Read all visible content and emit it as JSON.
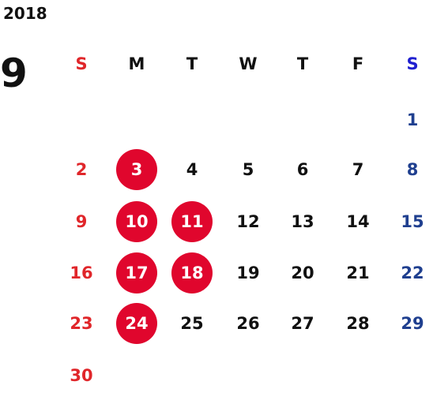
{
  "year": "2018",
  "month": "9",
  "weekdays": [
    "S",
    "M",
    "T",
    "W",
    "T",
    "F",
    "S"
  ],
  "weeks": [
    [
      null,
      null,
      null,
      null,
      null,
      null,
      "1"
    ],
    [
      "2",
      {
        "text": "3",
        "marked": true
      },
      "4",
      "5",
      "6",
      "7",
      "8"
    ],
    [
      "9",
      {
        "text": "10",
        "marked": true
      },
      {
        "text": "11",
        "marked": true
      },
      "12",
      "13",
      "14",
      "15"
    ],
    [
      "16",
      {
        "text": "17",
        "marked": true
      },
      {
        "text": "18",
        "marked": true
      },
      "19",
      "20",
      "21",
      "22"
    ],
    [
      "23",
      {
        "text": "24",
        "marked": true
      },
      "25",
      "26",
      "27",
      "28",
      "29"
    ],
    [
      "30"
    ]
  ]
}
